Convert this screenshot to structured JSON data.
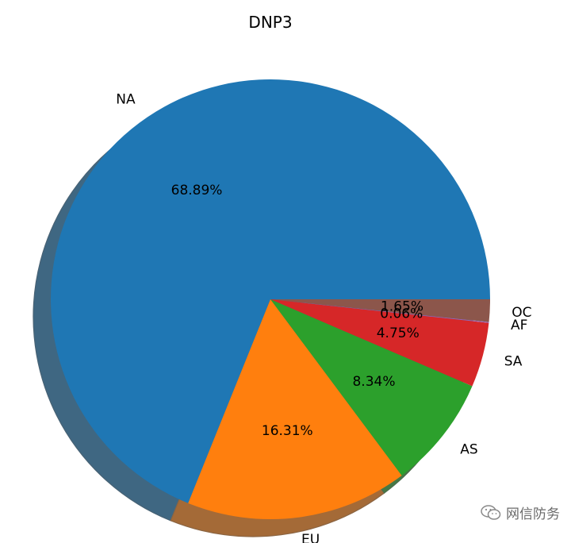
{
  "chart_data": {
    "type": "pie",
    "title": "DNP3",
    "shadow": true,
    "start_angle_deg": 0,
    "direction": "counterclockwise",
    "slices": [
      {
        "label": "NA",
        "value": 68.89,
        "pct_text": "68.89%",
        "color": "#1f77b4"
      },
      {
        "label": "EU",
        "value": 16.31,
        "pct_text": "16.31%",
        "color": "#ff7f0e"
      },
      {
        "label": "AS",
        "value": 8.34,
        "pct_text": "8.34%",
        "color": "#2ca02c"
      },
      {
        "label": "SA",
        "value": 4.75,
        "pct_text": "4.75%",
        "color": "#d62728"
      },
      {
        "label": "AF",
        "value": 0.06,
        "pct_text": "0.06%",
        "color": "#9467bd"
      },
      {
        "label": "OC",
        "value": 1.65,
        "pct_text": "1.65%",
        "color": "#8c564b"
      }
    ]
  },
  "watermark": {
    "text": "网信防务",
    "icon": "wechat-icon"
  }
}
